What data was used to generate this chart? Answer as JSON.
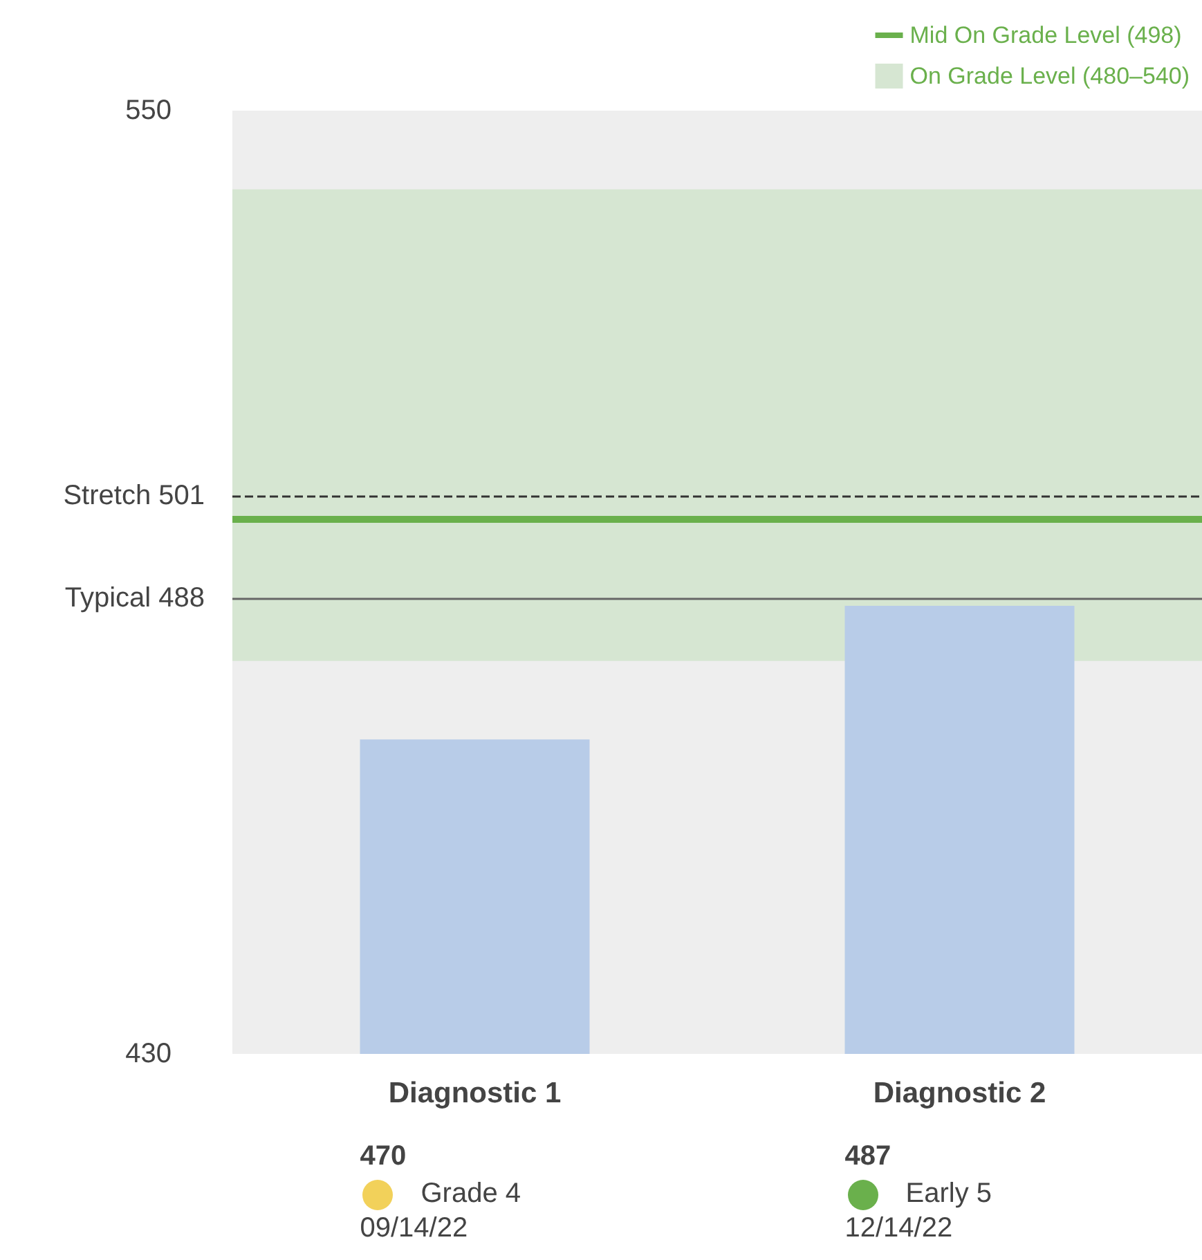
{
  "chart_data": {
    "type": "bar",
    "categories": [
      "Diagnostic 1",
      "Diagnostic 2"
    ],
    "values": [
      470,
      487
    ],
    "color": "#b8cce8",
    "value_labels": [
      "470",
      "487"
    ],
    "ylim": [
      430,
      550
    ],
    "yticks": [
      430,
      550
    ],
    "grid": false,
    "legend": "top right",
    "ref_lines": [
      {
        "axis": "y",
        "value": 501,
        "label": "Stretch 501",
        "color": "#333333",
        "line_style": "dashed"
      },
      {
        "axis": "y",
        "value": 488,
        "label": "Typical 488",
        "color": "#666666",
        "line_style": "solid"
      },
      {
        "axis": "y",
        "value": 498,
        "label": "Mid On Grade Level (498)",
        "color": "#6ab04c",
        "line_style": "solid"
      }
    ],
    "bands": [
      {
        "axis": "y",
        "from": 480,
        "to": 540,
        "label": "On Grade Level (480–540)",
        "color": "#d6e6d2"
      }
    ],
    "annotations": [
      "Grade 4",
      "09/14/22",
      "Early 5",
      "12/14/22"
    ]
  }
}
